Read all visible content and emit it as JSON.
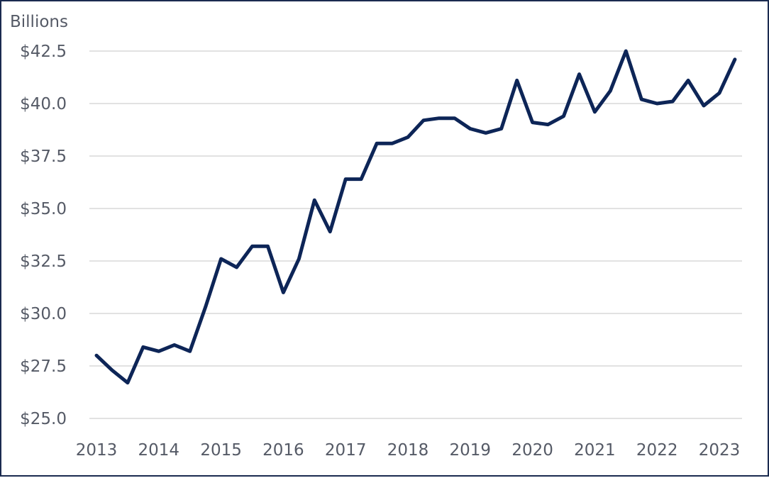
{
  "chart_data": {
    "type": "line",
    "unit_label": "Billions",
    "ylim": [
      25.0,
      42.5
    ],
    "y_ticks": [
      25.0,
      27.5,
      30.0,
      32.5,
      35.0,
      37.5,
      40.0,
      42.5
    ],
    "y_tick_labels": [
      "$25.0",
      "$27.5",
      "$30.0",
      "$32.5",
      "$35.0",
      "$37.5",
      "$40.0",
      "$42.5"
    ],
    "x_ticks": [
      2013,
      2014,
      2015,
      2016,
      2017,
      2018,
      2019,
      2020,
      2021,
      2022,
      2023
    ],
    "x_tick_labels": [
      "2013",
      "2014",
      "2015",
      "2016",
      "2017",
      "2018",
      "2019",
      "2020",
      "2021",
      "2022",
      "2023"
    ],
    "grid": true,
    "line_color": "#0d2557",
    "series": [
      {
        "x": [
          2013.0,
          2013.25,
          2013.5,
          2013.75,
          2014.0,
          2014.25,
          2014.5,
          2014.75,
          2015.0,
          2015.25,
          2015.5,
          2015.75,
          2016.0,
          2016.25,
          2016.5,
          2016.75,
          2017.0,
          2017.25,
          2017.5,
          2017.75,
          2018.0,
          2018.25,
          2018.5,
          2018.75,
          2019.0,
          2019.25,
          2019.5,
          2019.75,
          2020.0,
          2020.25,
          2020.5,
          2020.75,
          2021.0,
          2021.25,
          2021.5,
          2021.75,
          2022.0,
          2022.25,
          2022.5,
          2022.75,
          2023.0,
          2023.25
        ],
        "values": [
          28.0,
          27.3,
          26.7,
          28.4,
          28.2,
          28.5,
          28.2,
          30.3,
          32.6,
          32.2,
          33.2,
          33.2,
          31.0,
          32.6,
          35.4,
          33.9,
          36.4,
          36.4,
          38.1,
          38.1,
          38.4,
          39.2,
          39.3,
          39.3,
          38.8,
          38.6,
          38.8,
          41.1,
          39.1,
          39.0,
          39.4,
          41.4,
          39.6,
          40.6,
          42.5,
          40.2,
          40.0,
          40.1,
          41.1,
          39.9,
          40.5,
          42.1
        ]
      }
    ]
  }
}
